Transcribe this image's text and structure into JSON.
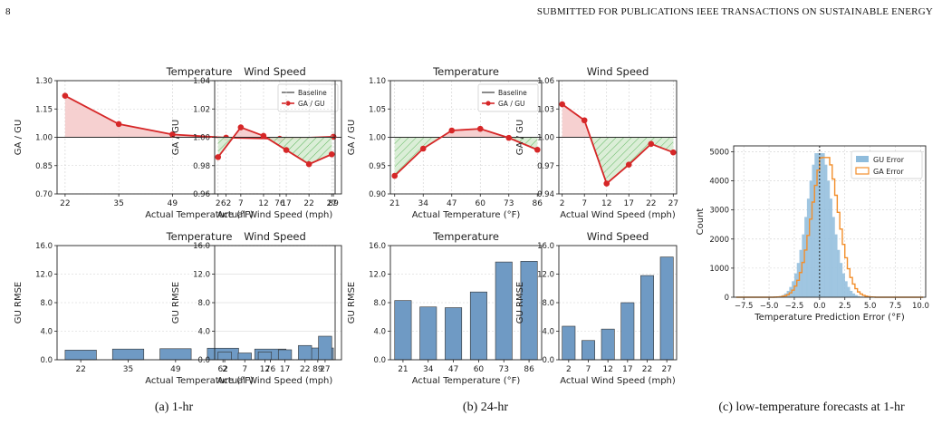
{
  "header": {
    "page_number": "8",
    "journal": "SUBMITTED FOR PUBLICATIONS IEEE TRANSACTIONS ON SUSTAINABLE ENERGY"
  },
  "captions": [
    "(a) 1-hr",
    "(b) 24-hr",
    "(c) low-temperature forecasts at 1-hr"
  ],
  "colors": {
    "line": "#d62728",
    "neg_fill": "#2ca02c",
    "pos_fill": "#f4c4c4",
    "bar": "#6f9ac4",
    "gu_hist": "#8fbcdc",
    "ga_hist": "#f28e2b"
  },
  "chart_data": [
    {
      "id": "a-temp-ratio",
      "type": "line",
      "title": "Temperature",
      "xlabel": "Actual Temperature (°F)",
      "ylabel": "GA / GU",
      "categories": [
        "22",
        "35",
        "49",
        "62",
        "76",
        "89"
      ],
      "values": [
        1.22,
        1.07,
        1.015,
        0.998,
        0.992,
        1.003
      ],
      "baseline": 1.0,
      "ylim": [
        0.7,
        1.3
      ],
      "yticks": [
        "0.70",
        "0.85",
        "1.00",
        "1.15",
        "1.30"
      ],
      "legend": [
        "Baseline",
        "GA / GU"
      ],
      "legend_loc": "upper-right",
      "grid": true
    },
    {
      "id": "a-wind-ratio",
      "type": "line",
      "title": "Wind Speed",
      "xlabel": "Actual Wind Speed (mph)",
      "ylabel": "GA / GU",
      "categories": [
        "2",
        "7",
        "12",
        "17",
        "22",
        "27"
      ],
      "values": [
        0.986,
        1.007,
        1.001,
        0.991,
        0.981,
        0.988
      ],
      "baseline": 1.0,
      "ylim": [
        0.96,
        1.04
      ],
      "yticks": [
        "0.96",
        "0.98",
        "1.00",
        "1.02",
        "1.04"
      ],
      "grid": true
    },
    {
      "id": "b-temp-ratio",
      "type": "line",
      "title": "Temperature",
      "xlabel": "Actual Temperature (°F)",
      "ylabel": "GA / GU",
      "categories": [
        "21",
        "34",
        "47",
        "60",
        "73",
        "86"
      ],
      "values": [
        0.932,
        0.98,
        1.012,
        1.015,
        0.999,
        0.978
      ],
      "baseline": 1.0,
      "ylim": [
        0.9,
        1.1
      ],
      "yticks": [
        "0.90",
        "0.95",
        "1.00",
        "1.05",
        "1.10"
      ],
      "legend": [
        "Baseline",
        "GA / GU"
      ],
      "legend_loc": "upper-right",
      "grid": true
    },
    {
      "id": "b-wind-ratio",
      "type": "line",
      "title": "Wind Speed",
      "xlabel": "Actual Wind Speed (mph)",
      "ylabel": "GA / GU",
      "categories": [
        "2",
        "7",
        "12",
        "17",
        "22",
        "27"
      ],
      "values": [
        1.035,
        1.018,
        0.951,
        0.971,
        0.993,
        0.984
      ],
      "baseline": 1.0,
      "ylim": [
        0.94,
        1.06
      ],
      "yticks": [
        "0.94",
        "0.97",
        "1.00",
        "1.03",
        "1.06"
      ],
      "grid": true
    },
    {
      "id": "a-temp-rmse",
      "type": "bar",
      "title": "Temperature",
      "xlabel": "Actual Temperature (°F)",
      "ylabel": "GU RMSE",
      "categories": [
        "22",
        "35",
        "49",
        "62",
        "76",
        "89"
      ],
      "values": [
        1.35,
        1.5,
        1.55,
        1.62,
        1.5,
        1.65
      ],
      "ylim": [
        0,
        16
      ],
      "yticks": [
        "0.0",
        "4.0",
        "8.0",
        "12.0",
        "16.0"
      ],
      "grid": true
    },
    {
      "id": "a-wind-rmse",
      "type": "bar",
      "title": "Wind Speed",
      "xlabel": "Actual Wind Speed (mph)",
      "ylabel": "GU RMSE",
      "categories": [
        "2",
        "7",
        "12",
        "17",
        "22",
        "27"
      ],
      "values": [
        1.1,
        0.95,
        1.1,
        1.4,
        2.0,
        3.3
      ],
      "ylim": [
        0,
        16
      ],
      "yticks": [
        "0.0",
        "4.0",
        "8.0",
        "12.0",
        "16.0"
      ],
      "grid": true
    },
    {
      "id": "b-temp-rmse",
      "type": "bar",
      "title": "Temperature",
      "xlabel": "Actual Temperature (°F)",
      "ylabel": "GU RMSE",
      "categories": [
        "21",
        "34",
        "47",
        "60",
        "73",
        "86"
      ],
      "values": [
        8.3,
        7.4,
        7.3,
        9.5,
        13.7,
        13.8
      ],
      "ylim": [
        0,
        16
      ],
      "yticks": [
        "0.0",
        "4.0",
        "8.0",
        "12.0",
        "16.0"
      ],
      "grid": true
    },
    {
      "id": "b-wind-rmse",
      "type": "bar",
      "title": "Wind Speed",
      "xlabel": "Actual Wind Speed (mph)",
      "ylabel": "GU RMSE",
      "categories": [
        "2",
        "7",
        "12",
        "17",
        "22",
        "27"
      ],
      "values": [
        4.7,
        2.7,
        4.3,
        8.0,
        11.8,
        14.4
      ],
      "ylim": [
        0,
        16
      ],
      "yticks": [
        "0.0",
        "4.0",
        "8.0",
        "12.0",
        "16.0"
      ],
      "grid": true
    },
    {
      "id": "c-hist",
      "type": "histogram",
      "xlabel": "Temperature Prediction Error (°F)",
      "ylabel": "Count",
      "xlim": [
        -8.5,
        10.5
      ],
      "ylim": [
        0,
        5200
      ],
      "xticks": [
        "−7.5",
        "−5.0",
        "−2.5",
        "0.0",
        "2.5",
        "5.0",
        "7.5",
        "10.0"
      ],
      "xtick_values": [
        -7.5,
        -5.0,
        -2.5,
        0.0,
        2.5,
        5.0,
        7.5,
        10.0
      ],
      "yticks": [
        "0",
        "1000",
        "2000",
        "3000",
        "4000",
        "5000"
      ],
      "ytick_values": [
        0,
        1000,
        2000,
        3000,
        4000,
        5000
      ],
      "series": [
        {
          "name": "GU Error",
          "mean": 0.0,
          "sd": 1.25,
          "peak": 4950
        },
        {
          "name": "GA Error",
          "mean": 0.55,
          "sd": 1.3,
          "peak": 4800
        }
      ],
      "zero_line": 0.0,
      "legend_loc": "upper-right",
      "grid": true
    }
  ]
}
